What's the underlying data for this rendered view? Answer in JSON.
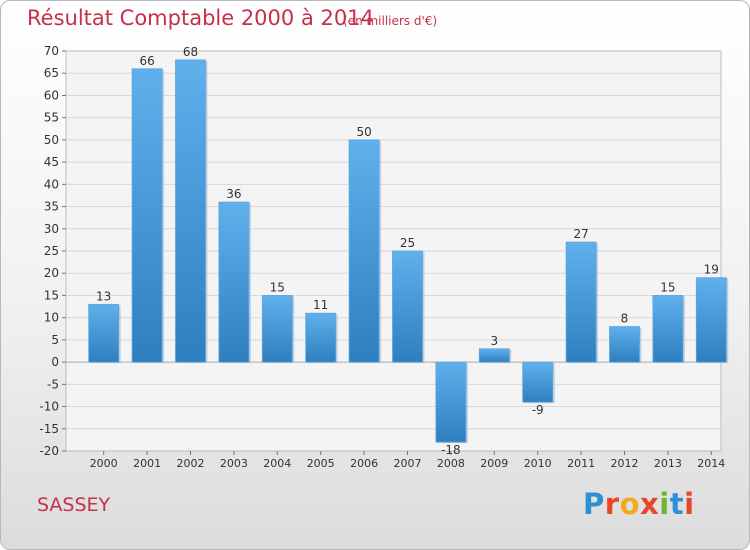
{
  "header": {
    "title": "Résultat Comptable 2000 à 2014",
    "subtitle": "(en milliers d'€)"
  },
  "footer": {
    "commune": "SASSEY",
    "logo_text": "Proxiti"
  },
  "colors": {
    "title": "#c5304a",
    "bar_light": "#60b0ec",
    "bar_dark": "#2f7fbf",
    "logo": [
      "#2f8fd6",
      "#e8452a",
      "#f4a81c",
      "#e8452a",
      "#6cb431",
      "#2f8fd6",
      "#e8452a"
    ]
  },
  "chart_data": {
    "type": "bar",
    "categories": [
      "2000",
      "2001",
      "2002",
      "2003",
      "2004",
      "2005",
      "2006",
      "2007",
      "2008",
      "2009",
      "2010",
      "2011",
      "2012",
      "2013",
      "2014"
    ],
    "values": [
      13,
      66,
      68,
      36,
      15,
      11,
      50,
      25,
      -18,
      3,
      -9,
      27,
      8,
      15,
      19
    ],
    "title": "Résultat Comptable 2000 à 2014",
    "ylim": [
      -20,
      70
    ],
    "ytick_step": 5,
    "grid": true
  }
}
